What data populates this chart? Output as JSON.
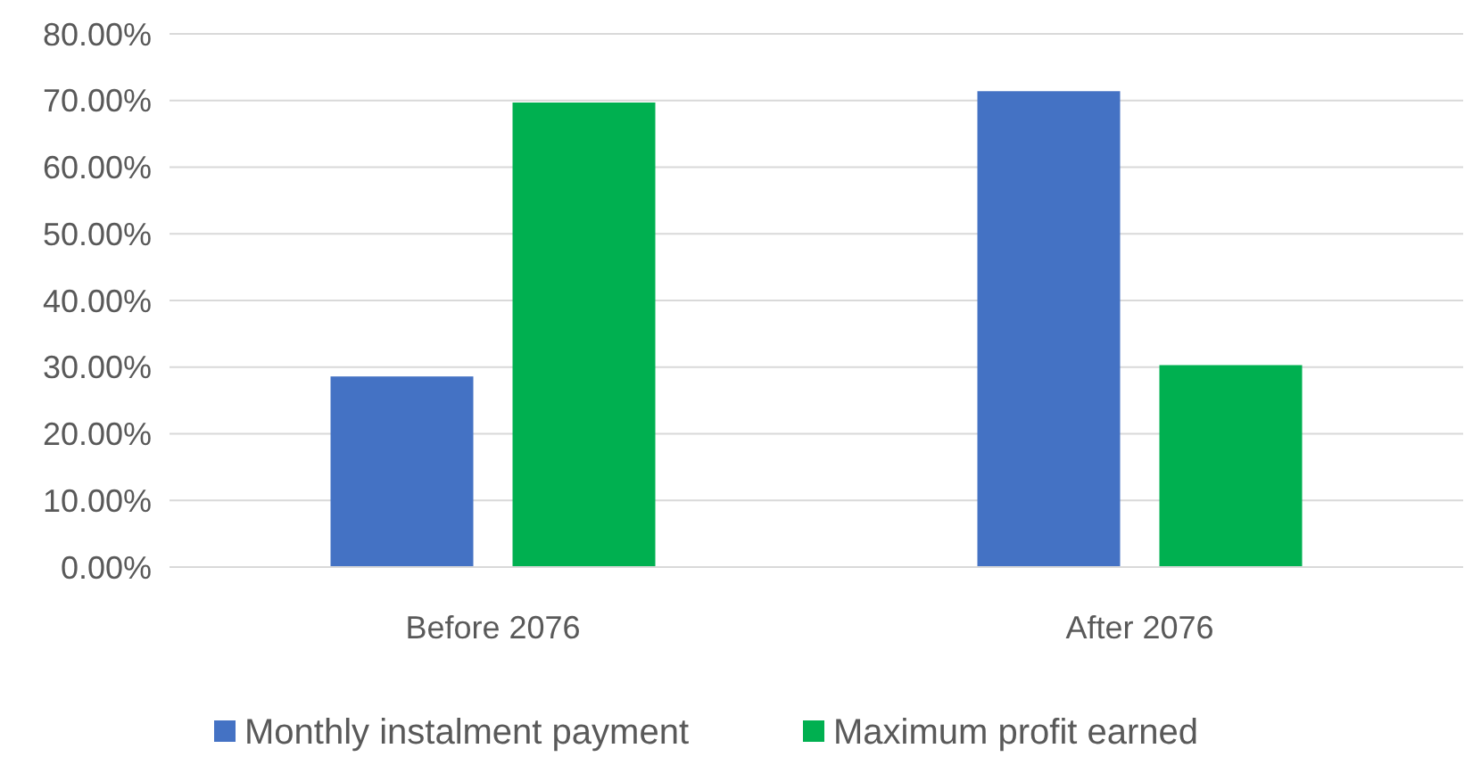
{
  "chart_data": {
    "type": "bar",
    "categories": [
      "Before 2076",
      "After 2076"
    ],
    "series": [
      {
        "name": "Monthly instalment payment",
        "color": "#4472c4",
        "values": [
          28.6,
          71.4
        ]
      },
      {
        "name": "Maximum profit earned",
        "color": "#00b050",
        "values": [
          69.7,
          30.3
        ]
      }
    ],
    "ylim": [
      0,
      80
    ],
    "yticks": [
      {
        "value": 0,
        "label": "0.00%"
      },
      {
        "value": 10,
        "label": "10.00%"
      },
      {
        "value": 20,
        "label": "20.00%"
      },
      {
        "value": 30,
        "label": "30.00%"
      },
      {
        "value": 40,
        "label": "40.00%"
      },
      {
        "value": 50,
        "label": "50.00%"
      },
      {
        "value": 60,
        "label": "60.00%"
      },
      {
        "value": 70,
        "label": "70.00%"
      },
      {
        "value": 80,
        "label": "80.00%"
      }
    ],
    "grid": "y",
    "legend": "bottom"
  }
}
